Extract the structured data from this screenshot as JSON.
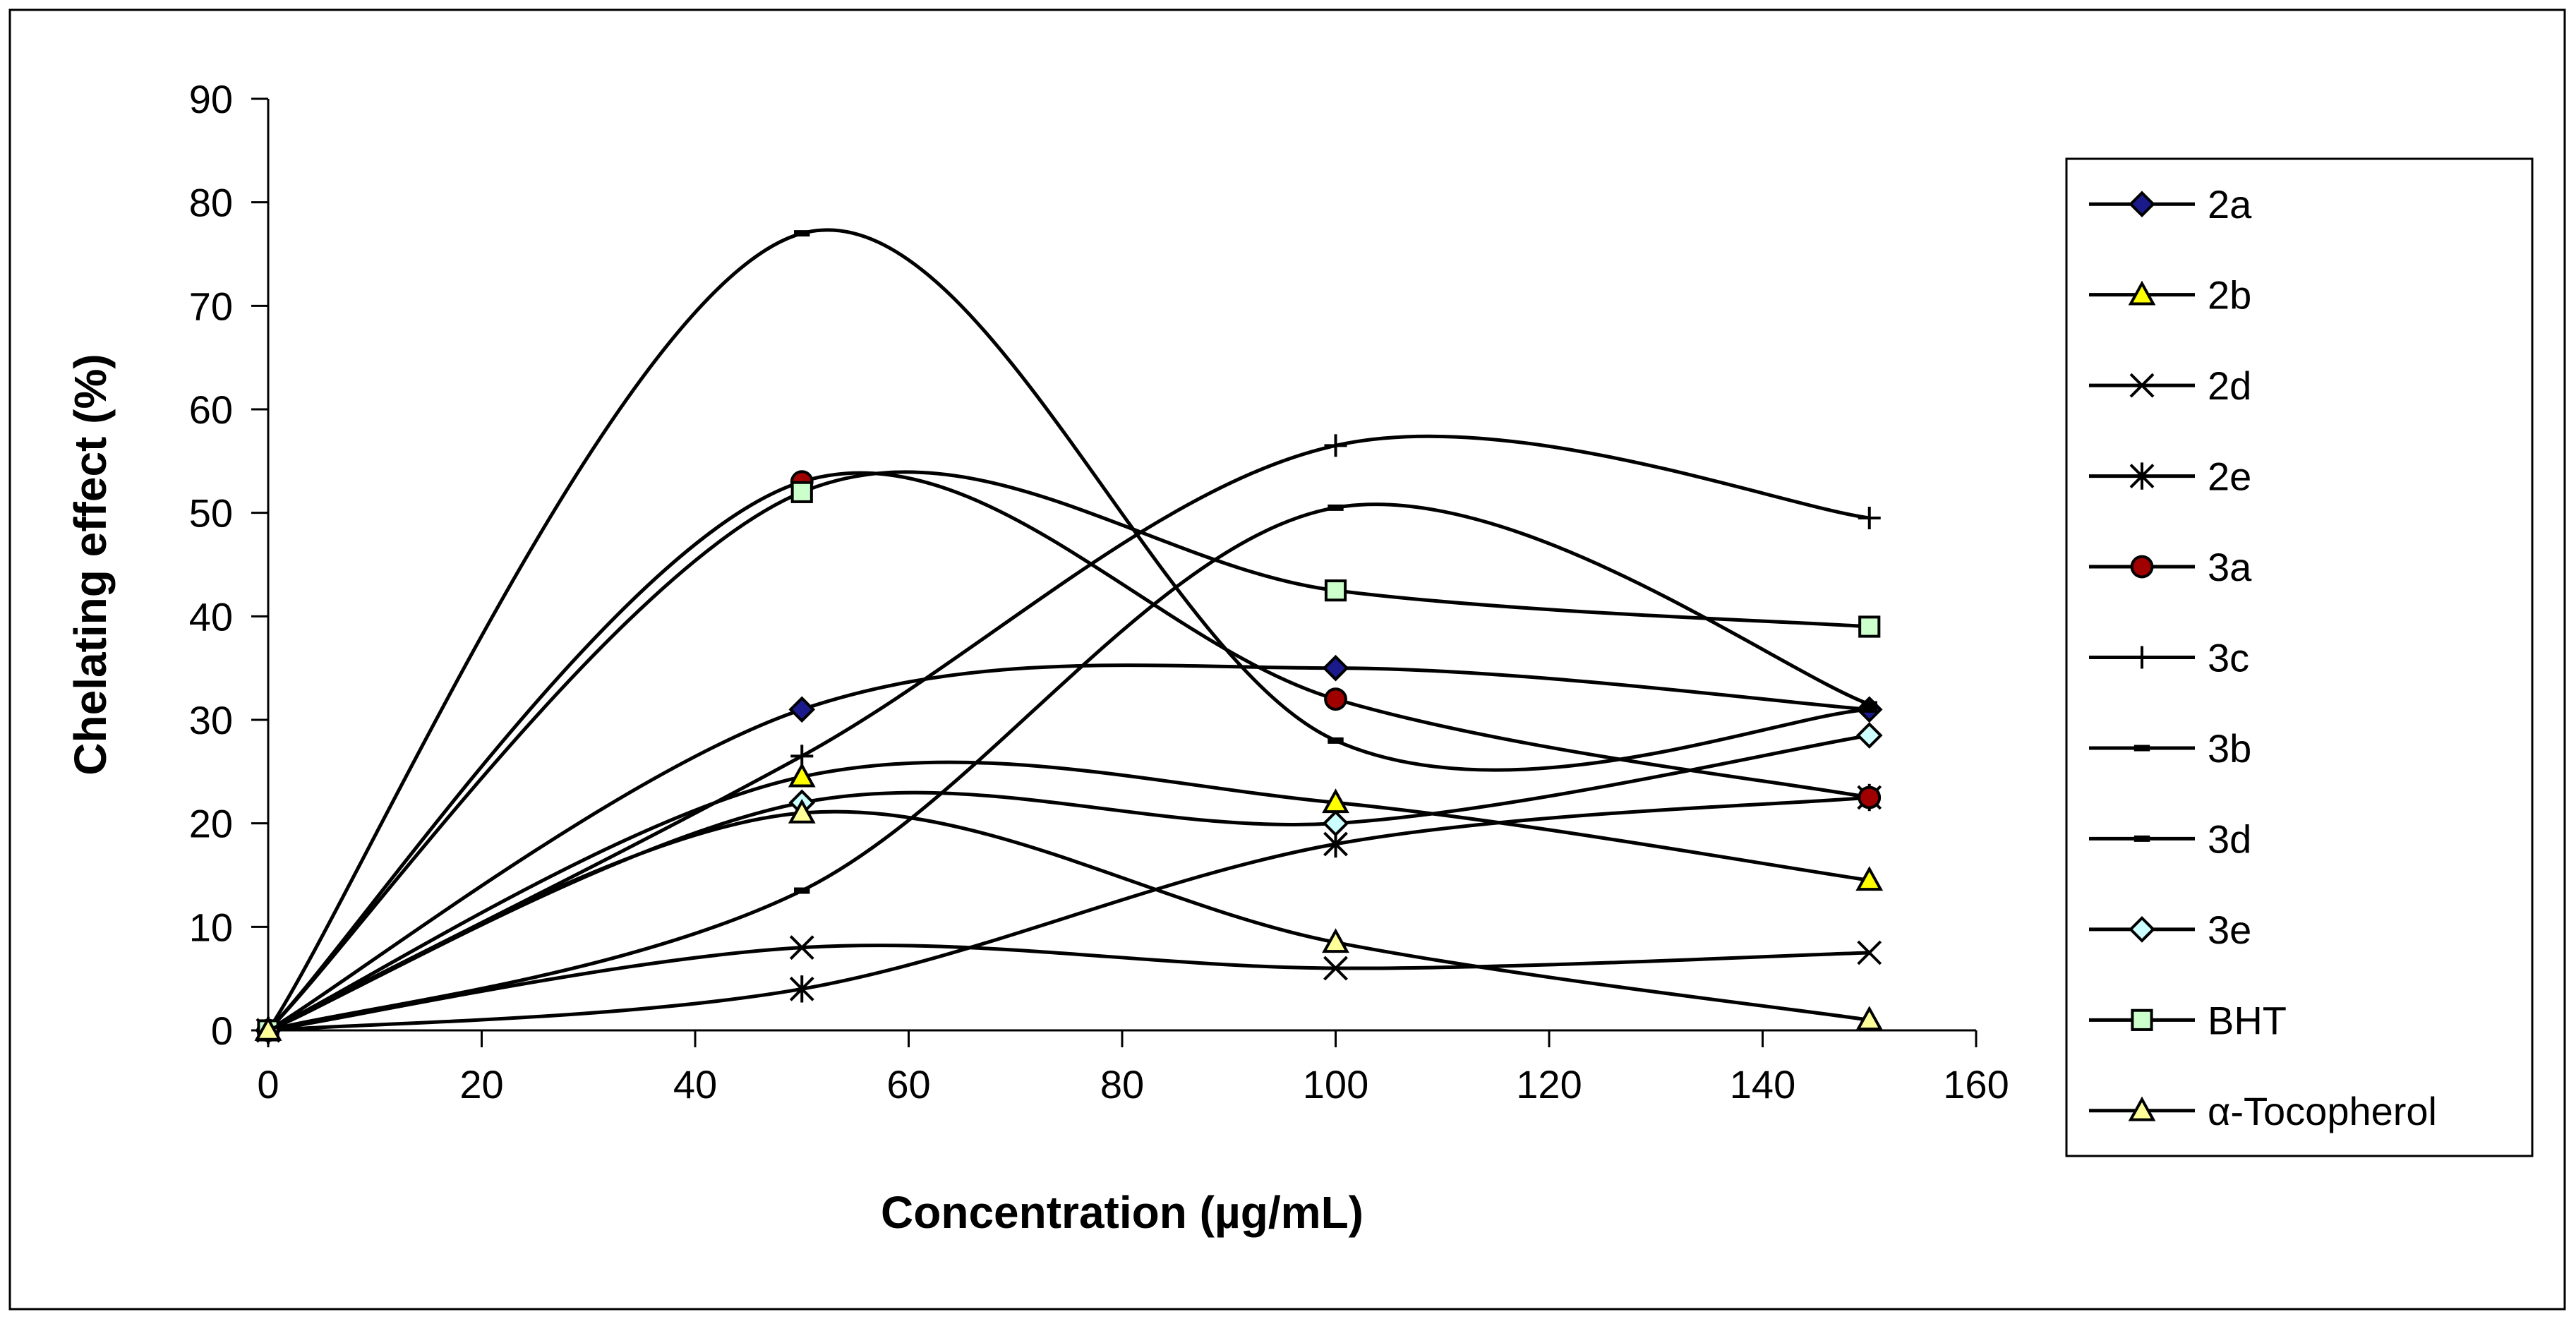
{
  "chart_data": {
    "type": "line",
    "title": "",
    "xlabel": "Concentration (µg/mL)",
    "ylabel": "Chelating effect (%)",
    "xlim": [
      0,
      160
    ],
    "ylim": [
      0,
      90
    ],
    "xticks": [
      0,
      20,
      40,
      60,
      80,
      100,
      120,
      140,
      160
    ],
    "yticks": [
      0,
      10,
      20,
      30,
      40,
      50,
      60,
      70,
      80,
      90
    ],
    "grid": false,
    "legend_position": "right",
    "x": [
      0,
      50,
      100,
      150
    ],
    "series": [
      {
        "name": "2a",
        "marker": "diamond",
        "marker_fill": "#1a1a8c",
        "values": [
          0,
          31,
          35,
          31
        ]
      },
      {
        "name": "2b",
        "marker": "triangle",
        "marker_fill": "#ffff00",
        "values": [
          0,
          24.5,
          22,
          14.5
        ]
      },
      {
        "name": "2d",
        "marker": "x",
        "marker_fill": "none",
        "values": [
          0,
          8,
          6,
          7.5
        ]
      },
      {
        "name": "2e",
        "marker": "star",
        "marker_fill": "none",
        "values": [
          0,
          4,
          18,
          22.5
        ]
      },
      {
        "name": "3a",
        "marker": "circle",
        "marker_fill": "#a00000",
        "values": [
          0,
          53,
          32,
          22.5
        ]
      },
      {
        "name": "3c",
        "marker": "plus",
        "marker_fill": "none",
        "values": [
          0,
          26.5,
          56.5,
          49.5
        ]
      },
      {
        "name": "3b",
        "marker": "dash",
        "marker_fill": "none",
        "values": [
          0,
          77,
          28,
          31
        ]
      },
      {
        "name": "3d",
        "marker": "dash",
        "marker_fill": "none",
        "values": [
          0,
          13.5,
          50.5,
          31.5
        ]
      },
      {
        "name": "3e",
        "marker": "diamond",
        "marker_fill": "#ccffff",
        "values": [
          0,
          22,
          20,
          28.5
        ]
      },
      {
        "name": "BHT",
        "marker": "square",
        "marker_fill": "#ccffcc",
        "values": [
          0,
          52,
          42.5,
          39
        ]
      },
      {
        "name": "α-Tocopherol",
        "marker": "triangle",
        "marker_fill": "#ffff99",
        "values": [
          0,
          21,
          8.5,
          1
        ]
      }
    ]
  }
}
